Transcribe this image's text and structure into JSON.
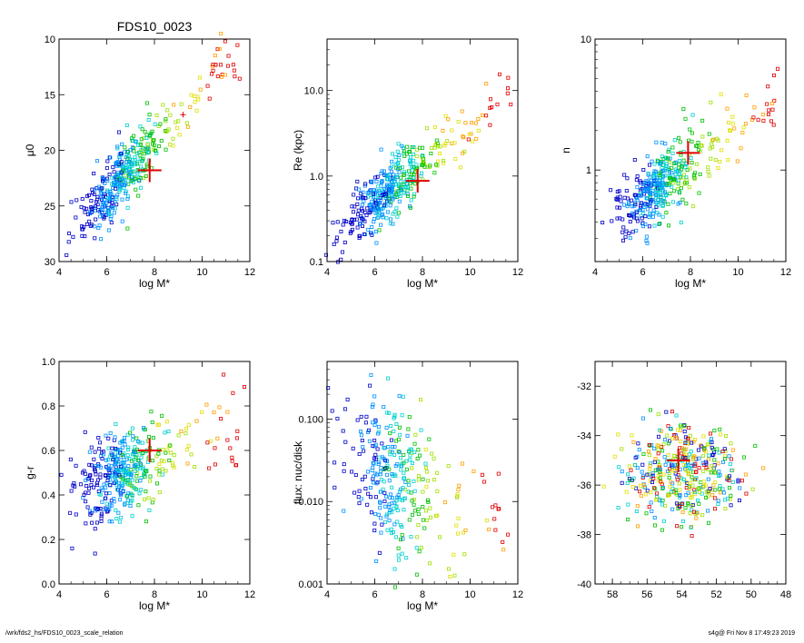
{
  "page": {
    "title": "FDS10_0023",
    "footer_left": "/wrk/fds2_hs/FDS10_0023_scale_relation",
    "footer_right": "s4g@  Fri Nov  8 17:49:23 2019"
  },
  "colors": {
    "marker_red": "#e00000",
    "axis": "#000000",
    "rainbow": [
      "#0000c8",
      "#0090ff",
      "#00d0d0",
      "#00c000",
      "#a0e000",
      "#e0e000",
      "#ffa000",
      "#e00000"
    ]
  },
  "chart_data": [
    {
      "type": "scatter",
      "title": "FDS10_0023",
      "xlabel": "log M*",
      "ylabel": "μ0",
      "xlim": [
        4,
        12
      ],
      "ylim": [
        30,
        10
      ],
      "yscale": "linear",
      "xticks": [
        4,
        6,
        8,
        10,
        12
      ],
      "yticks": [
        10,
        15,
        20,
        25,
        30
      ],
      "ytick_labels": [
        "10",
        "15",
        "20",
        "25",
        "30"
      ],
      "trend": {
        "x0": 5.0,
        "y0": 26.0,
        "slope": -2.3,
        "noise": 1.4
      },
      "n_points": 420,
      "target": {
        "x": 7.8,
        "y": 21.8
      },
      "highlight": {
        "x": 9.2,
        "y": 16.8
      }
    },
    {
      "type": "scatter",
      "title": "",
      "xlabel": "log M*",
      "ylabel": "Re (kpc)",
      "xlim": [
        4,
        12
      ],
      "ylim": [
        0.1,
        40
      ],
      "yscale": "log",
      "xticks": [
        4,
        6,
        8,
        10,
        12
      ],
      "yticks": [
        0.1,
        1,
        10
      ],
      "ytick_labels": [
        "0.1",
        "1.0",
        "10.0"
      ],
      "trend": {
        "x0": 5.0,
        "y0": -0.55,
        "slope": 0.23,
        "noise": 0.17
      },
      "n_points": 420,
      "target": {
        "x": 7.8,
        "y": 0.88
      }
    },
    {
      "type": "scatter",
      "title": "",
      "xlabel": "log M*",
      "ylabel": "n",
      "xlim": [
        4,
        12
      ],
      "ylim": [
        0.2,
        10
      ],
      "yscale": "log",
      "xticks": [
        4,
        6,
        8,
        10,
        12
      ],
      "yticks": [
        1,
        10
      ],
      "ytick_labels": [
        "1",
        "10"
      ],
      "trend": {
        "x0": 5.0,
        "y0": -0.35,
        "slope": 0.13,
        "noise": 0.13
      },
      "n_points": 420,
      "target": {
        "x": 7.9,
        "y": 1.35
      }
    },
    {
      "type": "scatter",
      "title": "",
      "xlabel": "log M*",
      "ylabel": "g-r",
      "xlim": [
        4,
        12
      ],
      "ylim": [
        0.0,
        1.0
      ],
      "yscale": "linear",
      "xticks": [
        4,
        6,
        8,
        10,
        12
      ],
      "yticks": [
        0.0,
        0.2,
        0.4,
        0.6,
        0.8,
        1.0
      ],
      "ytick_labels": [
        "0.0",
        "0.2",
        "0.4",
        "0.6",
        "0.8",
        "1.0"
      ],
      "trend": {
        "x0": 5.0,
        "y0": 0.42,
        "slope": 0.05,
        "noise": 0.1
      },
      "n_points": 420,
      "target": {
        "x": 7.8,
        "y": 0.6
      }
    },
    {
      "type": "scatter",
      "title": "",
      "xlabel": "log M*",
      "ylabel": "flux: nuc/disk",
      "xlim": [
        4,
        12
      ],
      "ylim": [
        0.001,
        0.5
      ],
      "yscale": "log",
      "xticks": [
        4,
        6,
        8,
        10,
        12
      ],
      "yticks": [
        0.001,
        0.01,
        0.1
      ],
      "ytick_labels": [
        "0.001",
        "0.010",
        "0.100"
      ],
      "trend": {
        "x0": 6.0,
        "y0": -1.6,
        "slope": -0.15,
        "noise": 0.45
      },
      "n_points": 320,
      "target": null
    },
    {
      "type": "scatter",
      "title": "",
      "xlabel": "",
      "ylabel": "",
      "xlim": [
        59,
        48
      ],
      "ylim": [
        -40,
        -31
      ],
      "yscale": "linear",
      "xticks": [
        58,
        56,
        54,
        52,
        50,
        48
      ],
      "yticks": [
        -40,
        -38,
        -36,
        -34,
        -32
      ],
      "ytick_labels": [
        "-40",
        "-38",
        "-36",
        "-34",
        "-32"
      ],
      "trend": {
        "x0": 54.0,
        "y0": -35.5,
        "slope": 0,
        "noise": 1.0
      },
      "n_points": 420,
      "target": {
        "x": 54.2,
        "y": -35.0
      }
    }
  ]
}
